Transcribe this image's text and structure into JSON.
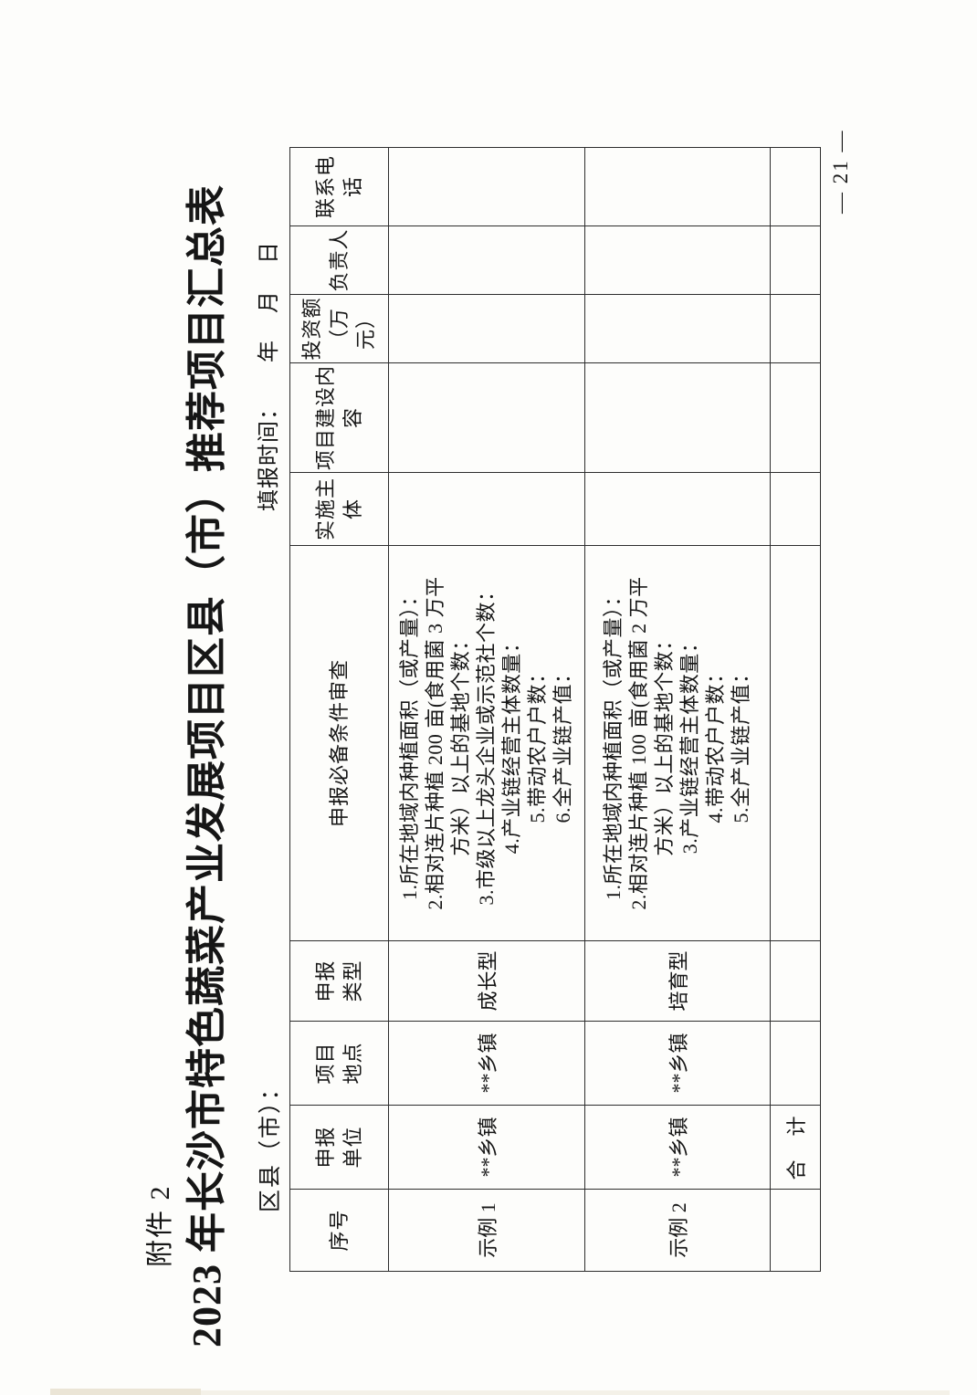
{
  "page": {
    "attachment_label": "附件 2",
    "title": "2023 年长沙市特色蔬菜产业发展项目区县（市）推荐项目汇总表",
    "region_label": "区县（市）：",
    "fill_time": {
      "label": "填报时间：",
      "year": "年",
      "month": "月",
      "day": "日"
    },
    "page_number": "— 21 —"
  },
  "table": {
    "headers": [
      "序号",
      "申报\n单位",
      "项目\n地点",
      "申报\n类型",
      "申报必备条件审查",
      "实施主体",
      "项目建设内容",
      "投资额\n（万元）",
      "负责人",
      "联系电话"
    ],
    "rows": [
      {
        "seq": "示例 1",
        "unit": "**乡镇",
        "location": "**乡镇",
        "type": "成长型",
        "conditions": "1.所在地域内种植面积（或产量）：\n2.相对连片种植 200 亩(食用菌 3 万平\n方米）以上的基地个数：\n3.市级以上龙头企业或示范社个数：\n4.产业链经营主体数量：\n5.带动农户户数：\n6.全产业链产值：",
        "implementer": "",
        "construction": "",
        "investment": "",
        "leader": "",
        "phone": ""
      },
      {
        "seq": "示例 2",
        "unit": "**乡镇",
        "location": "**乡镇",
        "type": "培育型",
        "conditions": "1.所在地域内种植面积（或产量）：\n2.相对连片种植 100 亩(食用菌 2 万平\n方米）以上的基地个数：\n3.产业链经营主体数量：\n4.带动农户户数：\n5.全产业链产值：",
        "implementer": "",
        "construction": "",
        "investment": "",
        "leader": "",
        "phone": ""
      },
      {
        "seq": "",
        "unit": "合　计",
        "location": "",
        "type": "",
        "conditions": "",
        "implementer": "",
        "construction": "",
        "investment": "",
        "leader": "",
        "phone": ""
      }
    ]
  }
}
